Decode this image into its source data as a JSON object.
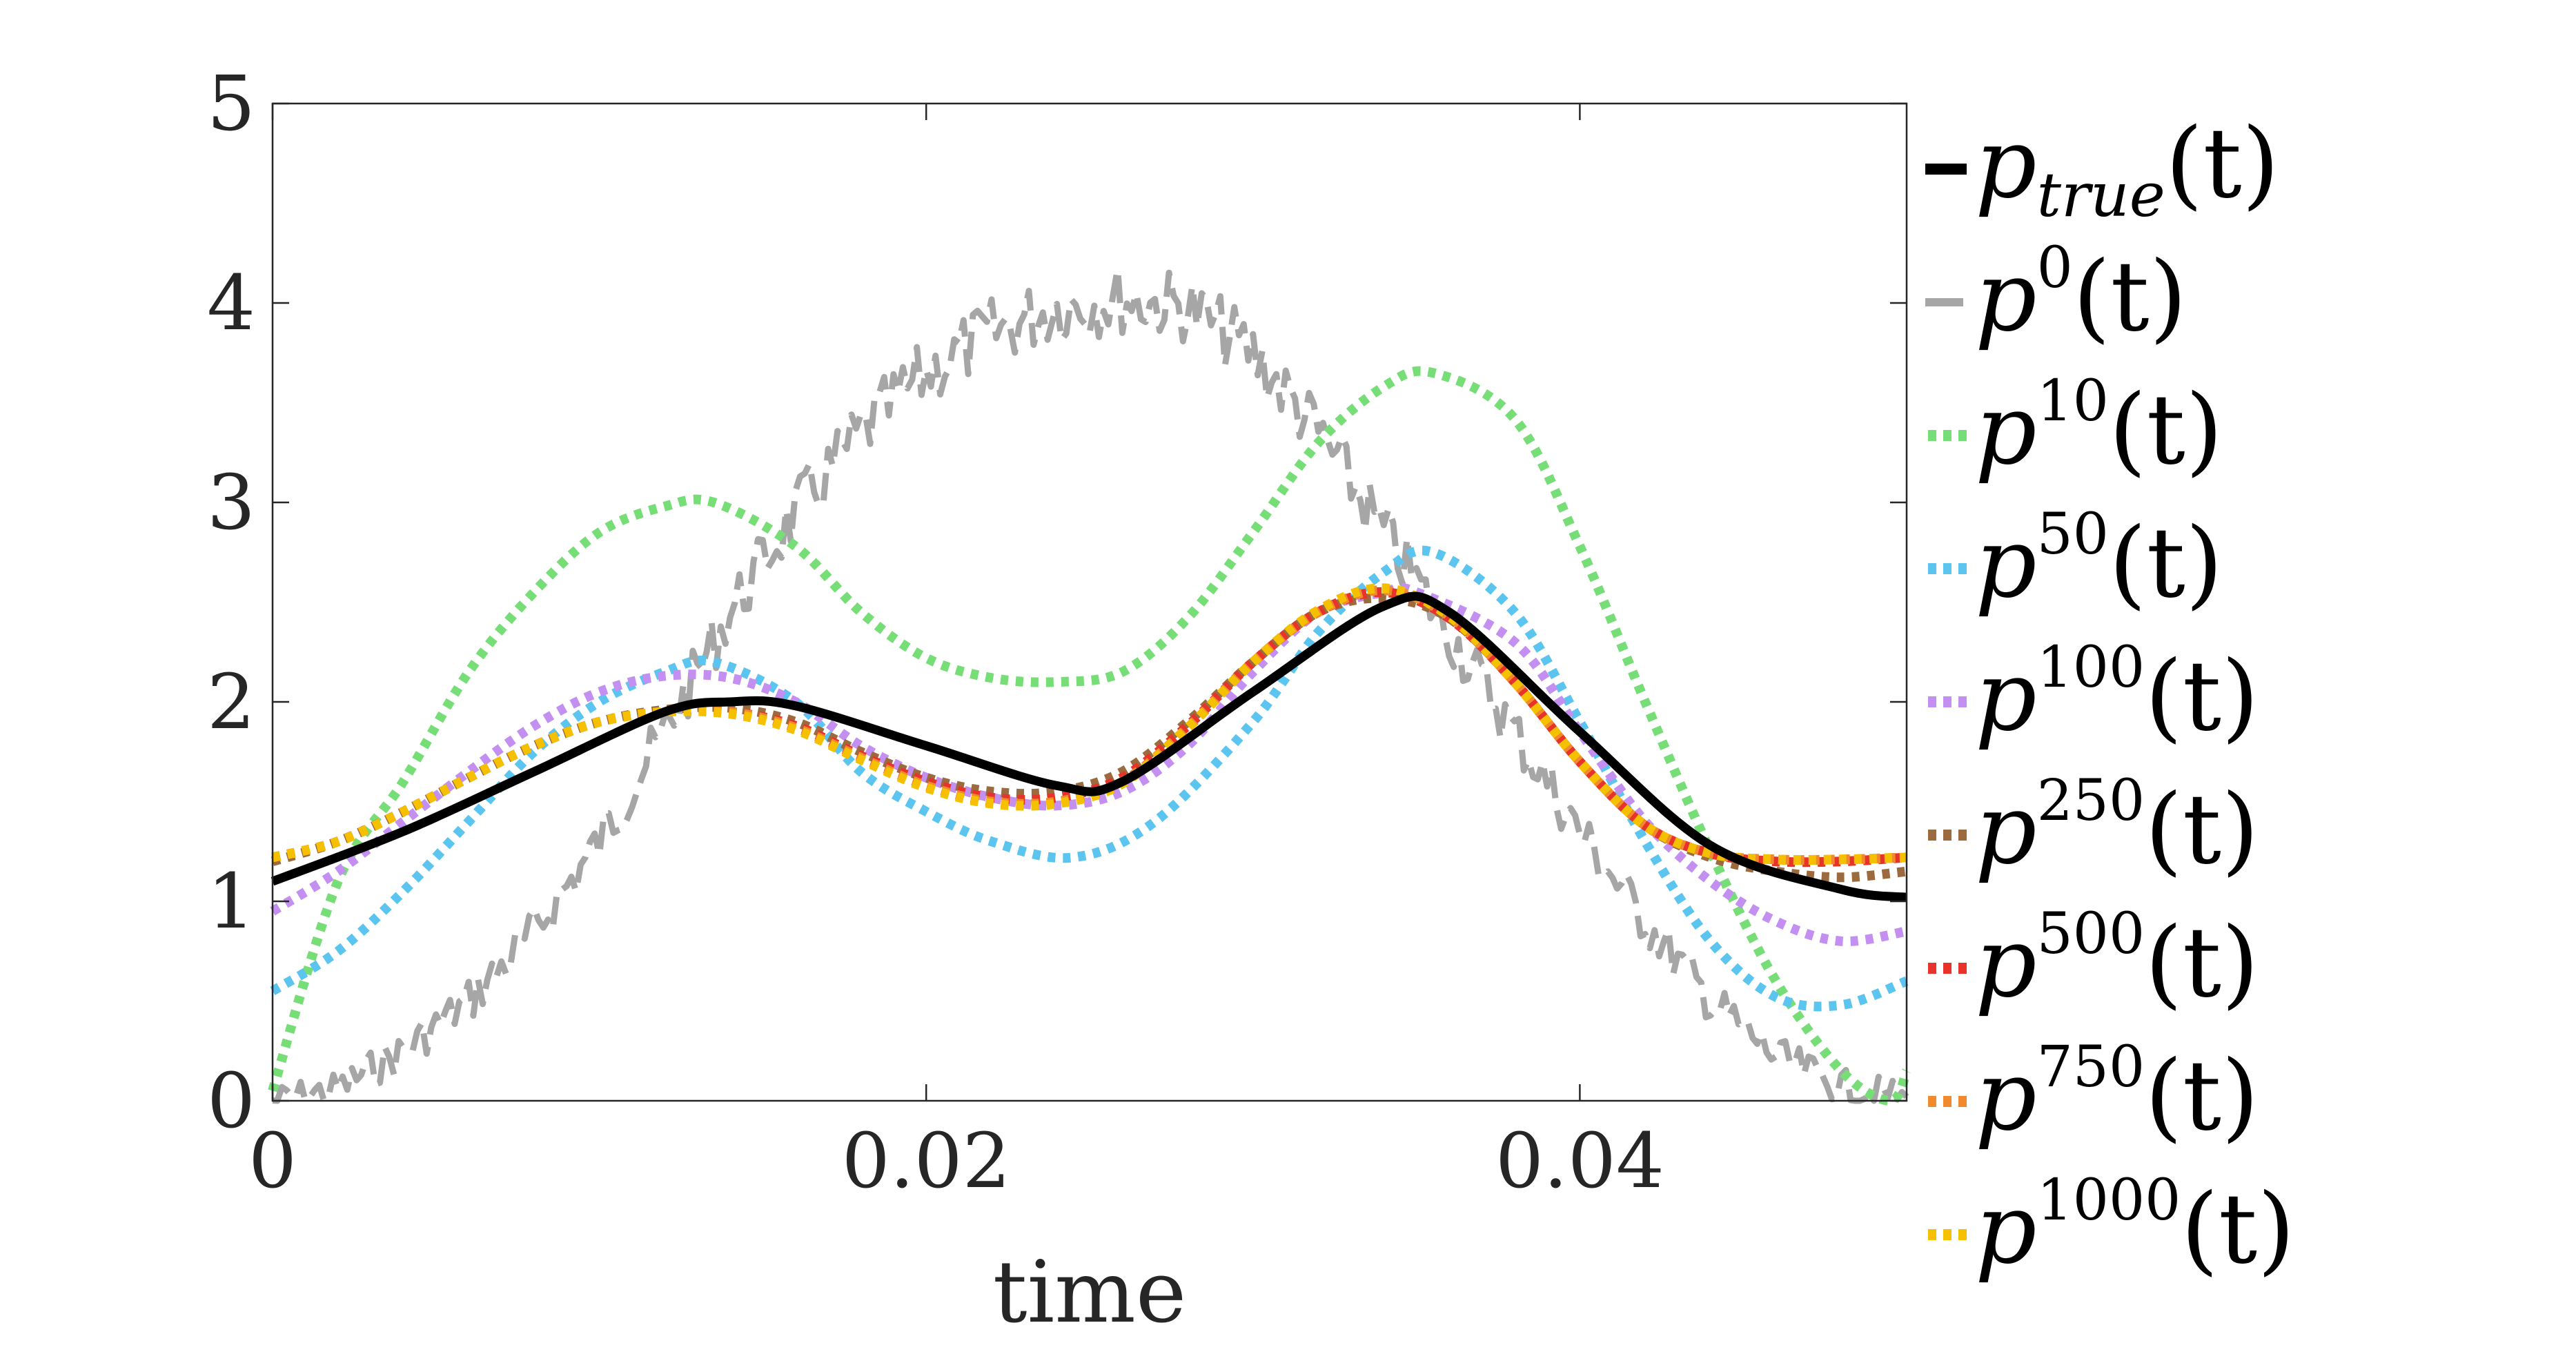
{
  "chart_data": {
    "type": "line",
    "xlabel": "time",
    "ylabel": "",
    "xlim": [
      0,
      0.05
    ],
    "ylim": [
      0,
      5
    ],
    "x_ticks": [
      0,
      0.02,
      0.04
    ],
    "x_tick_labels": [
      "0",
      "0.02",
      "0.04"
    ],
    "y_ticks": [
      0,
      1,
      2,
      3,
      4,
      5
    ],
    "y_tick_labels": [
      "0",
      "1",
      "2",
      "3",
      "4",
      "5"
    ],
    "grid": false,
    "legend_position": "right",
    "series": [
      {
        "key": "true",
        "legend_base": "p",
        "legend_sub": "true",
        "legend_sup": "",
        "legend_arg": "(t)",
        "color": "#000000",
        "style": "solid",
        "x": [
          0,
          0.004,
          0.008,
          0.012,
          0.014,
          0.016,
          0.02,
          0.024,
          0.026,
          0.03,
          0.034,
          0.036,
          0.04,
          0.044,
          0.048,
          0.05
        ],
        "y": [
          1.1,
          1.35,
          1.65,
          1.95,
          2.0,
          1.98,
          1.78,
          1.58,
          1.6,
          2.05,
          2.48,
          2.45,
          1.85,
          1.28,
          1.06,
          1.02
        ]
      },
      {
        "key": "p0",
        "legend_base": "p",
        "legend_sub": "",
        "legend_sup": "0",
        "legend_arg": "(t)",
        "color": "#a6a6a6",
        "style": "dashed-noisy",
        "x": [
          0,
          0.002,
          0.004,
          0.006,
          0.008,
          0.01,
          0.012,
          0.014,
          0.016,
          0.018,
          0.02,
          0.022,
          0.024,
          0.026,
          0.028,
          0.03,
          0.032,
          0.034,
          0.036,
          0.038,
          0.04,
          0.042,
          0.044,
          0.046,
          0.048,
          0.05
        ],
        "y": [
          0.0,
          0.06,
          0.25,
          0.5,
          0.85,
          1.3,
          1.85,
          2.45,
          2.95,
          3.35,
          3.65,
          3.85,
          3.98,
          4.02,
          3.98,
          3.75,
          3.35,
          2.85,
          2.35,
          1.85,
          1.35,
          0.9,
          0.5,
          0.22,
          0.07,
          0.02
        ]
      },
      {
        "key": "p10",
        "legend_base": "p",
        "legend_sub": "",
        "legend_sup": "10",
        "legend_arg": "(t)",
        "color": "#77dd77",
        "style": "dotted",
        "x": [
          0,
          0.002,
          0.004,
          0.006,
          0.008,
          0.01,
          0.012,
          0.0135,
          0.016,
          0.018,
          0.02,
          0.022,
          0.024,
          0.026,
          0.028,
          0.03,
          0.032,
          0.034,
          0.0355,
          0.038,
          0.04,
          0.042,
          0.044,
          0.046,
          0.048,
          0.0495,
          0.05
        ],
        "y": [
          0.05,
          1.1,
          1.6,
          2.15,
          2.55,
          2.85,
          2.98,
          3.0,
          2.78,
          2.45,
          2.22,
          2.12,
          2.1,
          2.15,
          2.42,
          2.85,
          3.3,
          3.58,
          3.65,
          3.42,
          2.78,
          2.0,
          1.25,
          0.6,
          0.15,
          0.0,
          0.15
        ]
      },
      {
        "key": "p50",
        "legend_base": "p",
        "legend_sub": "",
        "legend_sup": "50",
        "legend_arg": "(t)",
        "color": "#5bc4ef",
        "style": "dotted",
        "x": [
          0,
          0.002,
          0.004,
          0.006,
          0.008,
          0.01,
          0.012,
          0.0135,
          0.016,
          0.018,
          0.02,
          0.022,
          0.0245,
          0.027,
          0.03,
          0.032,
          0.034,
          0.0355,
          0.038,
          0.04,
          0.042,
          0.044,
          0.046,
          0.048,
          0.05
        ],
        "y": [
          0.55,
          0.75,
          1.05,
          1.4,
          1.75,
          2.0,
          2.15,
          2.2,
          2.0,
          1.65,
          1.45,
          1.3,
          1.22,
          1.4,
          1.9,
          2.35,
          2.65,
          2.75,
          2.45,
          1.9,
          1.3,
          0.8,
          0.52,
          0.48,
          0.6
        ]
      },
      {
        "key": "p100",
        "legend_base": "p",
        "legend_sub": "",
        "legend_sup": "100",
        "legend_arg": "(t)",
        "color": "#c38ff0",
        "style": "dotted",
        "x": [
          0,
          0.002,
          0.004,
          0.006,
          0.008,
          0.01,
          0.012,
          0.014,
          0.016,
          0.018,
          0.02,
          0.022,
          0.024,
          0.026,
          0.028,
          0.03,
          0.032,
          0.034,
          0.035,
          0.038,
          0.04,
          0.042,
          0.044,
          0.046,
          0.048,
          0.05
        ],
        "y": [
          0.95,
          1.15,
          1.4,
          1.65,
          1.88,
          2.05,
          2.13,
          2.12,
          2.0,
          1.78,
          1.62,
          1.52,
          1.48,
          1.55,
          1.78,
          2.15,
          2.45,
          2.55,
          2.55,
          2.3,
          1.85,
          1.4,
          1.1,
          0.9,
          0.8,
          0.85
        ]
      },
      {
        "key": "p250",
        "legend_base": "p",
        "legend_sub": "",
        "legend_sup": "250",
        "legend_arg": "(t)",
        "color": "#9b6b3f",
        "style": "dotted",
        "x": [
          0,
          0.002,
          0.004,
          0.006,
          0.008,
          0.01,
          0.012,
          0.014,
          0.016,
          0.018,
          0.02,
          0.022,
          0.024,
          0.026,
          0.028,
          0.03,
          0.032,
          0.034,
          0.036,
          0.038,
          0.04,
          0.042,
          0.044,
          0.046,
          0.048,
          0.05
        ],
        "y": [
          1.2,
          1.3,
          1.45,
          1.62,
          1.78,
          1.9,
          1.96,
          1.97,
          1.9,
          1.75,
          1.62,
          1.55,
          1.55,
          1.65,
          1.9,
          2.2,
          2.45,
          2.52,
          2.42,
          2.1,
          1.7,
          1.38,
          1.22,
          1.15,
          1.12,
          1.15
        ]
      },
      {
        "key": "p500",
        "legend_base": "p",
        "legend_sub": "",
        "legend_sup": "500",
        "legend_arg": "(t)",
        "color": "#e8332a",
        "style": "dotted",
        "x": [
          0,
          0.002,
          0.004,
          0.006,
          0.008,
          0.01,
          0.012,
          0.014,
          0.016,
          0.018,
          0.02,
          0.022,
          0.024,
          0.026,
          0.028,
          0.03,
          0.032,
          0.034,
          0.036,
          0.038,
          0.04,
          0.042,
          0.044,
          0.046,
          0.048,
          0.05
        ],
        "y": [
          1.22,
          1.3,
          1.45,
          1.62,
          1.78,
          1.9,
          1.95,
          1.95,
          1.88,
          1.73,
          1.6,
          1.52,
          1.52,
          1.62,
          1.88,
          2.2,
          2.45,
          2.55,
          2.42,
          2.1,
          1.7,
          1.38,
          1.24,
          1.2,
          1.2,
          1.22
        ]
      },
      {
        "key": "p750",
        "legend_base": "p",
        "legend_sub": "",
        "legend_sup": "750",
        "legend_arg": "(t)",
        "color": "#f08a2c",
        "style": "dotted",
        "x": [
          0,
          0.002,
          0.004,
          0.006,
          0.008,
          0.01,
          0.012,
          0.014,
          0.016,
          0.018,
          0.02,
          0.022,
          0.024,
          0.026,
          0.028,
          0.03,
          0.032,
          0.034,
          0.036,
          0.038,
          0.04,
          0.042,
          0.044,
          0.046,
          0.048,
          0.05
        ],
        "y": [
          1.22,
          1.3,
          1.45,
          1.62,
          1.78,
          1.9,
          1.95,
          1.95,
          1.87,
          1.72,
          1.58,
          1.5,
          1.5,
          1.6,
          1.87,
          2.2,
          2.45,
          2.56,
          2.43,
          2.1,
          1.7,
          1.38,
          1.24,
          1.21,
          1.21,
          1.22
        ]
      },
      {
        "key": "p1000",
        "legend_base": "p",
        "legend_sub": "",
        "legend_sup": "1000",
        "legend_arg": "(t)",
        "color": "#f5c000",
        "style": "dotted",
        "x": [
          0,
          0.002,
          0.004,
          0.006,
          0.008,
          0.01,
          0.012,
          0.014,
          0.016,
          0.018,
          0.02,
          0.022,
          0.024,
          0.026,
          0.028,
          0.03,
          0.032,
          0.034,
          0.036,
          0.038,
          0.04,
          0.042,
          0.044,
          0.046,
          0.048,
          0.05
        ],
        "y": [
          1.22,
          1.3,
          1.45,
          1.62,
          1.78,
          1.9,
          1.95,
          1.94,
          1.86,
          1.71,
          1.57,
          1.49,
          1.49,
          1.59,
          1.87,
          2.2,
          2.46,
          2.57,
          2.43,
          2.1,
          1.7,
          1.38,
          1.24,
          1.21,
          1.21,
          1.22
        ]
      }
    ]
  }
}
